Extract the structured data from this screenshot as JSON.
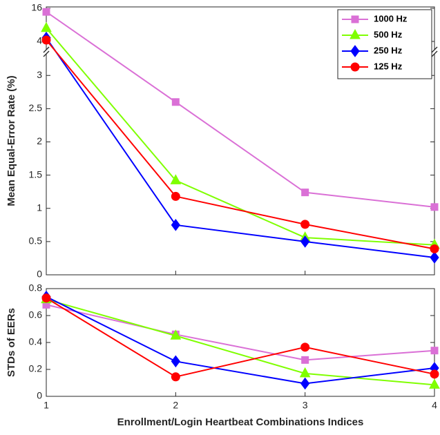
{
  "chart_data": [
    {
      "type": "line",
      "ylabel": "Mean Equal-Error Rate (%)",
      "x": [
        1,
        2,
        3,
        4
      ],
      "xlim": [
        1,
        4
      ],
      "xticks": [
        1,
        2,
        3,
        4
      ],
      "ylim": [
        0,
        16
      ],
      "yticks": [
        0,
        0.5,
        1,
        1.5,
        2,
        2.5,
        3,
        4,
        16
      ],
      "y_break": [
        3.2,
        4
      ],
      "legend": "upper right",
      "series": [
        {
          "name": "1000 Hz",
          "color": "#da70d6",
          "marker": "square",
          "values": [
            14.7,
            2.6,
            1.24,
            1.02
          ]
        },
        {
          "name": "500 Hz",
          "color": "#7fff00",
          "marker": "triangle",
          "values": [
            8.8,
            1.42,
            0.56,
            0.45
          ]
        },
        {
          "name": "250 Hz",
          "color": "#0000ff",
          "marker": "diamond",
          "values": [
            5.3,
            0.75,
            0.5,
            0.26
          ]
        },
        {
          "name": "125 Hz",
          "color": "#ff0000",
          "marker": "circle",
          "values": [
            4.5,
            1.18,
            0.76,
            0.39
          ]
        }
      ]
    },
    {
      "type": "line",
      "ylabel": "STDs of EERs",
      "xlabel": "Enrollment/Login Heartbeat Combinations Indices",
      "x": [
        1,
        2,
        3,
        4
      ],
      "xlim": [
        1,
        4
      ],
      "xticks": [
        1,
        2,
        3,
        4
      ],
      "ylim": [
        0,
        0.8
      ],
      "yticks": [
        0,
        0.2,
        0.4,
        0.6,
        0.8
      ],
      "series": [
        {
          "name": "1000 Hz",
          "color": "#da70d6",
          "marker": "square",
          "values": [
            0.68,
            0.46,
            0.27,
            0.34
          ]
        },
        {
          "name": "500 Hz",
          "color": "#7fff00",
          "marker": "triangle",
          "values": [
            0.72,
            0.45,
            0.17,
            0.085
          ]
        },
        {
          "name": "250 Hz",
          "color": "#0000ff",
          "marker": "diamond",
          "values": [
            0.74,
            0.26,
            0.095,
            0.21
          ]
        },
        {
          "name": "125 Hz",
          "color": "#ff0000",
          "marker": "circle",
          "values": [
            0.73,
            0.145,
            0.365,
            0.165
          ]
        }
      ]
    }
  ]
}
